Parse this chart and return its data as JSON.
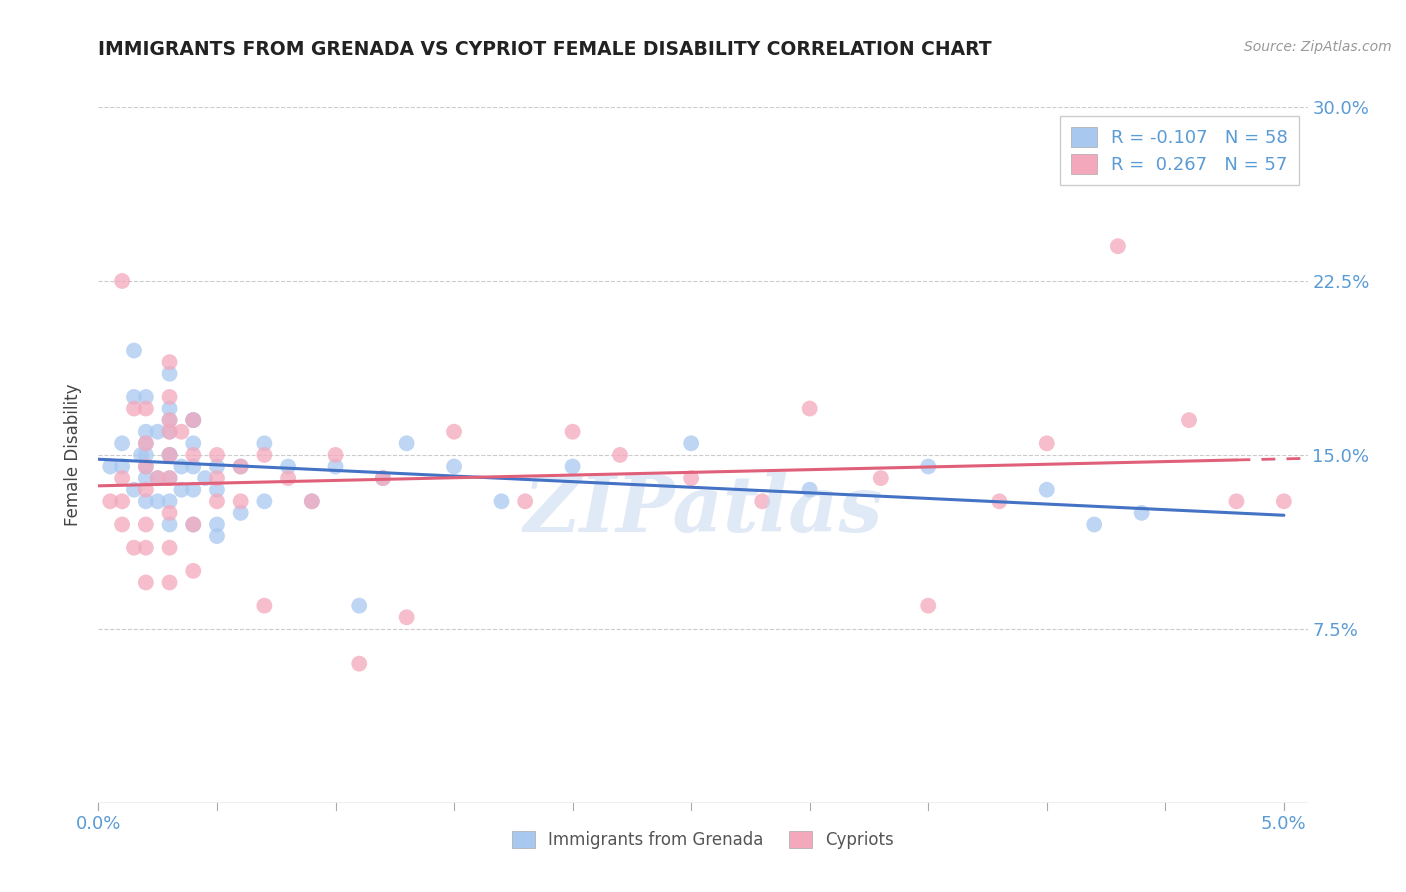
{
  "title": "IMMIGRANTS FROM GRENADA VS CYPRIOT FEMALE DISABILITY CORRELATION CHART",
  "source": "Source: ZipAtlas.com",
  "ylabel": "Female Disability",
  "xmin": 0.0,
  "xmax": 0.05,
  "ymin": 0.0,
  "ymax": 0.3,
  "yticks": [
    0.0,
    0.075,
    0.15,
    0.225,
    0.3
  ],
  "ytick_labels": [
    "",
    "7.5%",
    "15.0%",
    "22.5%",
    "30.0%"
  ],
  "xticks": [
    0.0,
    0.05
  ],
  "xtick_labels": [
    "0.0%",
    "5.0%"
  ],
  "legend_labels": [
    "Immigrants from Grenada",
    "Cypriots"
  ],
  "R_grenada": -0.107,
  "N_grenada": 58,
  "R_cypriots": 0.267,
  "N_cypriots": 57,
  "color_grenada": "#A8C8F0",
  "color_cypriots": "#F4A8BC",
  "line_color_grenada": "#4472C4",
  "line_color_cypriots": "#E0607A",
  "background_color": "#FFFFFF",
  "watermark": "ZIPatlas",
  "grenada_x": [
    0.0005,
    0.001,
    0.001,
    0.0015,
    0.0015,
    0.0015,
    0.0018,
    0.002,
    0.002,
    0.002,
    0.002,
    0.002,
    0.002,
    0.002,
    0.0025,
    0.0025,
    0.0025,
    0.003,
    0.003,
    0.003,
    0.003,
    0.003,
    0.003,
    0.003,
    0.003,
    0.003,
    0.0035,
    0.0035,
    0.004,
    0.004,
    0.004,
    0.004,
    0.004,
    0.004,
    0.0045,
    0.005,
    0.005,
    0.005,
    0.005,
    0.006,
    0.006,
    0.007,
    0.007,
    0.008,
    0.009,
    0.01,
    0.011,
    0.012,
    0.013,
    0.015,
    0.017,
    0.02,
    0.025,
    0.03,
    0.035,
    0.04,
    0.042,
    0.044
  ],
  "grenada_y": [
    0.145,
    0.155,
    0.145,
    0.195,
    0.175,
    0.135,
    0.15,
    0.175,
    0.16,
    0.15,
    0.14,
    0.13,
    0.155,
    0.145,
    0.14,
    0.13,
    0.16,
    0.185,
    0.17,
    0.16,
    0.15,
    0.14,
    0.13,
    0.12,
    0.165,
    0.15,
    0.145,
    0.135,
    0.165,
    0.155,
    0.145,
    0.135,
    0.12,
    0.165,
    0.14,
    0.145,
    0.135,
    0.12,
    0.115,
    0.145,
    0.125,
    0.155,
    0.13,
    0.145,
    0.13,
    0.145,
    0.085,
    0.14,
    0.155,
    0.145,
    0.13,
    0.145,
    0.155,
    0.135,
    0.145,
    0.135,
    0.12,
    0.125
  ],
  "cypriots_x": [
    0.0005,
    0.001,
    0.001,
    0.001,
    0.001,
    0.0015,
    0.0015,
    0.002,
    0.002,
    0.002,
    0.002,
    0.002,
    0.002,
    0.002,
    0.0025,
    0.003,
    0.003,
    0.003,
    0.003,
    0.003,
    0.003,
    0.003,
    0.003,
    0.003,
    0.0035,
    0.004,
    0.004,
    0.004,
    0.004,
    0.005,
    0.005,
    0.005,
    0.006,
    0.006,
    0.007,
    0.007,
    0.008,
    0.009,
    0.01,
    0.011,
    0.012,
    0.013,
    0.015,
    0.018,
    0.02,
    0.022,
    0.025,
    0.028,
    0.03,
    0.033,
    0.035,
    0.038,
    0.04,
    0.043,
    0.046,
    0.048,
    0.05
  ],
  "cypriots_y": [
    0.13,
    0.14,
    0.13,
    0.12,
    0.225,
    0.11,
    0.17,
    0.17,
    0.155,
    0.145,
    0.135,
    0.12,
    0.11,
    0.095,
    0.14,
    0.19,
    0.175,
    0.16,
    0.15,
    0.14,
    0.125,
    0.11,
    0.095,
    0.165,
    0.16,
    0.165,
    0.15,
    0.12,
    0.1,
    0.15,
    0.14,
    0.13,
    0.145,
    0.13,
    0.15,
    0.085,
    0.14,
    0.13,
    0.15,
    0.06,
    0.14,
    0.08,
    0.16,
    0.13,
    0.16,
    0.15,
    0.14,
    0.13,
    0.17,
    0.14,
    0.085,
    0.13,
    0.155,
    0.24,
    0.165,
    0.13,
    0.13
  ]
}
